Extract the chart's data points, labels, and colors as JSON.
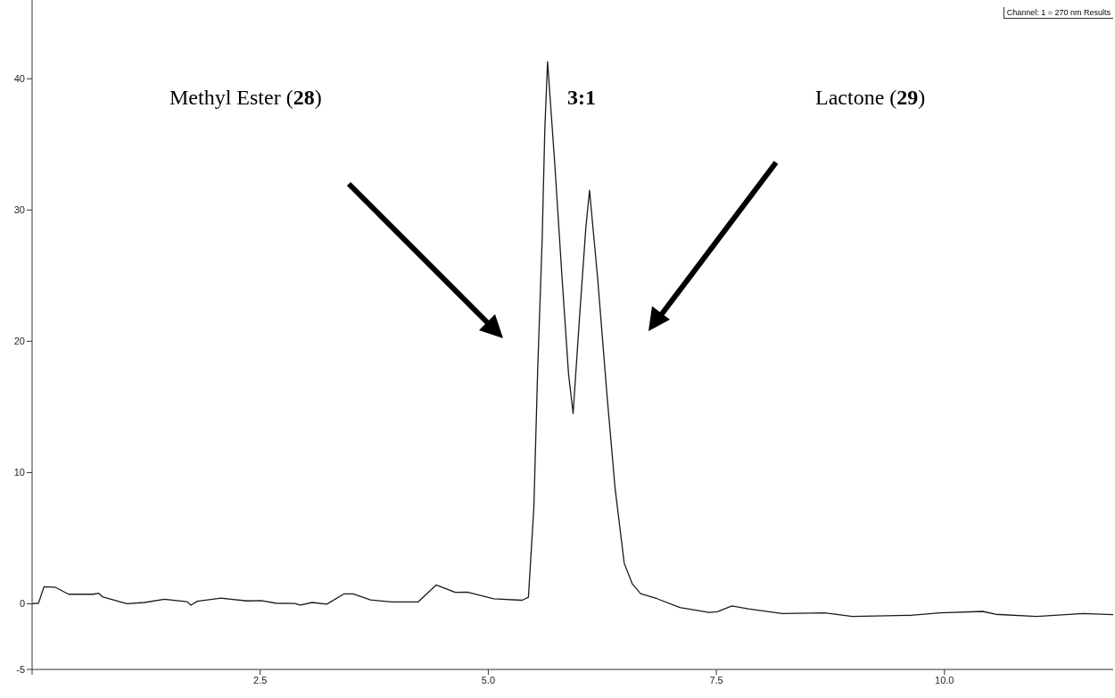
{
  "chart_data": {
    "type": "line",
    "xlim": [
      0,
      11.85
    ],
    "ylim": [
      -5,
      46
    ],
    "xticks": [
      {
        "value": 0,
        "label": null
      },
      {
        "value": 2.5,
        "label": "2.5"
      },
      {
        "value": 5,
        "label": "5.0"
      },
      {
        "value": 7.5,
        "label": "7.5"
      },
      {
        "value": 10,
        "label": "10.0"
      }
    ],
    "yticks": [
      -5,
      0,
      10,
      20,
      30,
      40
    ],
    "grid": false,
    "legend": false,
    "marker": "none",
    "line_style": "solid",
    "series": [
      {
        "color": "#1a1a1a",
        "x": [
          0,
          0.07,
          0.13,
          0.25,
          0.4,
          0.67,
          0.73,
          0.77,
          1.04,
          1.23,
          1.45,
          1.7,
          1.74,
          1.81,
          2.07,
          2.36,
          2.51,
          2.67,
          2.88,
          2.94,
          3.07,
          3.23,
          3.42,
          3.52,
          3.71,
          3.94,
          4.23,
          4.43,
          4.64,
          4.77,
          5.06,
          5.37,
          5.44,
          5.5,
          5.54,
          5.59,
          5.62,
          5.65,
          5.73,
          5.81,
          5.88,
          5.93,
          6,
          6.07,
          6.11,
          6.2,
          6.3,
          6.39,
          6.49,
          6.58,
          6.67,
          6.85,
          7.1,
          7.42,
          7.51,
          7.67,
          7.85,
          8.22,
          8.69,
          8.99,
          9.63,
          9.95,
          10.42,
          10.56,
          11.01,
          11.52,
          11.85
        ],
        "values": [
          0,
          0.05,
          1.3,
          1.27,
          0.73,
          0.73,
          0.8,
          0.54,
          0,
          0.1,
          0.35,
          0.16,
          -0.1,
          0.19,
          0.43,
          0.22,
          0.24,
          0.05,
          0.03,
          -0.1,
          0.1,
          -0.03,
          0.76,
          0.76,
          0.3,
          0.14,
          0.14,
          1.44,
          0.87,
          0.89,
          0.38,
          0.27,
          0.5,
          7.4,
          17.5,
          27.6,
          36.2,
          41.3,
          33.4,
          24.7,
          17.5,
          14.5,
          21.8,
          28.7,
          31.5,
          24.7,
          16,
          8.8,
          3.1,
          1.5,
          0.77,
          0.39,
          -0.28,
          -0.66,
          -0.6,
          -0.17,
          -0.39,
          -0.74,
          -0.69,
          -0.96,
          -0.88,
          -0.69,
          -0.58,
          -0.8,
          -0.96,
          -0.74,
          -0.83
        ]
      }
    ],
    "annotations": [
      "Methyl Ester (28)",
      "3:1",
      "Lactone (29)",
      "Channel: 1 = 270 nm Results"
    ]
  }
}
